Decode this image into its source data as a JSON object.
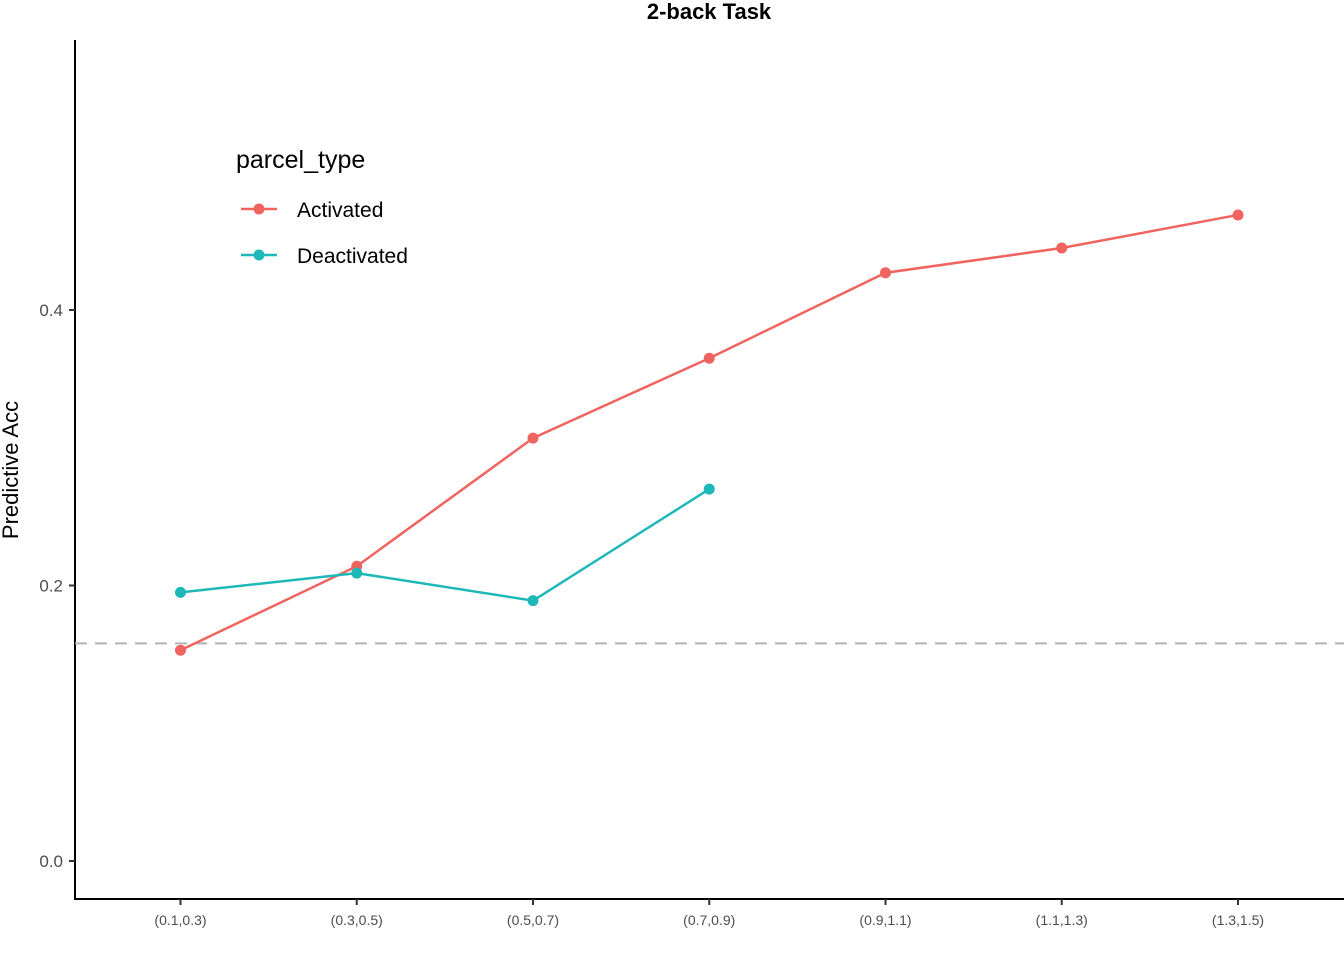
{
  "chart_data": {
    "type": "line",
    "title": "2-back Task",
    "xlabel": "",
    "ylabel": "Predictive Acc",
    "categories": [
      "(0.1,0.3)",
      "(0.3,0.5)",
      "(0.5,0.7)",
      "(0.7,0.9)",
      "(0.9,1.1)",
      "(1.1,1.3)",
      "(1.3,1.5)"
    ],
    "yticks": [
      "0.0",
      "0.2",
      "0.4"
    ],
    "ylim": [
      -0.028,
      0.598
    ],
    "reference_line": {
      "y": 0.158,
      "style": "dashed",
      "color": "#b3b3b3"
    },
    "legend": {
      "title": "parcel_type",
      "position": "top-left"
    },
    "grid": false,
    "series": [
      {
        "name": "Activated",
        "color": "#F0645F",
        "values": [
          0.153,
          0.214,
          0.307,
          0.365,
          0.427,
          0.445,
          0.469
        ]
      },
      {
        "name": "Deactivated",
        "color": "#1FB8B8",
        "values": [
          0.195,
          0.209,
          0.189,
          0.27,
          null,
          null,
          null
        ]
      }
    ]
  }
}
